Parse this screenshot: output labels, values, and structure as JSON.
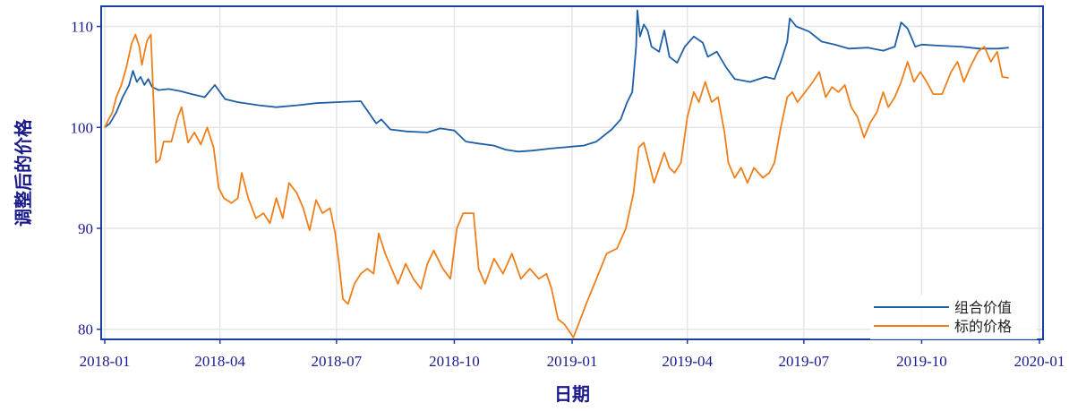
{
  "chart_data": {
    "type": "line",
    "title": "",
    "xlabel": "日期",
    "ylabel": "调整后的价格",
    "xlim": [
      "2018-01-01",
      "2020-01-01"
    ],
    "ylim": [
      79,
      112
    ],
    "x_ticks": [
      "2018-01",
      "2018-04",
      "2018-07",
      "2018-10",
      "2019-01",
      "2019-04",
      "2019-07",
      "2019-10",
      "2020-01"
    ],
    "y_ticks": [
      80,
      90,
      100,
      110
    ],
    "grid": true,
    "legend_position": "bottom-right",
    "series": [
      {
        "name": "组合价值",
        "color": "#1f5fa6",
        "points": [
          [
            "2018-01-01",
            100.0
          ],
          [
            "2018-01-05",
            100.4
          ],
          [
            "2018-01-10",
            101.5
          ],
          [
            "2018-01-15",
            103.0
          ],
          [
            "2018-01-20",
            104.2
          ],
          [
            "2018-01-23",
            105.6
          ],
          [
            "2018-01-26",
            104.5
          ],
          [
            "2018-01-29",
            105.0
          ],
          [
            "2018-02-01",
            104.2
          ],
          [
            "2018-02-04",
            104.8
          ],
          [
            "2018-02-07",
            104.0
          ],
          [
            "2018-02-12",
            103.7
          ],
          [
            "2018-02-20",
            103.8
          ],
          [
            "2018-03-01",
            103.6
          ],
          [
            "2018-03-10",
            103.3
          ],
          [
            "2018-03-20",
            103.0
          ],
          [
            "2018-03-28",
            104.2
          ],
          [
            "2018-04-05",
            102.8
          ],
          [
            "2018-04-15",
            102.5
          ],
          [
            "2018-05-01",
            102.2
          ],
          [
            "2018-05-15",
            102.0
          ],
          [
            "2018-06-01",
            102.2
          ],
          [
            "2018-06-15",
            102.4
          ],
          [
            "2018-07-01",
            102.5
          ],
          [
            "2018-07-20",
            102.6
          ],
          [
            "2018-07-26",
            101.5
          ],
          [
            "2018-08-01",
            100.4
          ],
          [
            "2018-08-05",
            100.8
          ],
          [
            "2018-08-12",
            99.8
          ],
          [
            "2018-08-25",
            99.6
          ],
          [
            "2018-09-10",
            99.5
          ],
          [
            "2018-09-20",
            99.9
          ],
          [
            "2018-10-01",
            99.7
          ],
          [
            "2018-10-10",
            98.6
          ],
          [
            "2018-10-20",
            98.4
          ],
          [
            "2018-11-01",
            98.2
          ],
          [
            "2018-11-10",
            97.8
          ],
          [
            "2018-11-20",
            97.6
          ],
          [
            "2018-12-01",
            97.7
          ],
          [
            "2018-12-15",
            97.9
          ],
          [
            "2019-01-01",
            98.1
          ],
          [
            "2019-01-10",
            98.2
          ],
          [
            "2019-01-20",
            98.6
          ],
          [
            "2019-02-01",
            99.8
          ],
          [
            "2019-02-08",
            100.8
          ],
          [
            "2019-02-13",
            102.5
          ],
          [
            "2019-02-17",
            103.5
          ],
          [
            "2019-02-20",
            108.0
          ],
          [
            "2019-02-21",
            111.6
          ],
          [
            "2019-02-23",
            109.0
          ],
          [
            "2019-02-26",
            110.2
          ],
          [
            "2019-03-01",
            109.6
          ],
          [
            "2019-03-04",
            108.0
          ],
          [
            "2019-03-10",
            107.5
          ],
          [
            "2019-03-14",
            109.6
          ],
          [
            "2019-03-18",
            107.0
          ],
          [
            "2019-03-24",
            106.4
          ],
          [
            "2019-03-30",
            108.0
          ],
          [
            "2019-04-06",
            109.0
          ],
          [
            "2019-04-13",
            108.4
          ],
          [
            "2019-04-17",
            107.0
          ],
          [
            "2019-04-24",
            107.5
          ],
          [
            "2019-05-01",
            106.0
          ],
          [
            "2019-05-08",
            104.8
          ],
          [
            "2019-05-20",
            104.5
          ],
          [
            "2019-06-01",
            105.0
          ],
          [
            "2019-06-08",
            104.8
          ],
          [
            "2019-06-13",
            106.5
          ],
          [
            "2019-06-18",
            108.5
          ],
          [
            "2019-06-20",
            110.8
          ],
          [
            "2019-06-25",
            110.0
          ],
          [
            "2019-07-05",
            109.5
          ],
          [
            "2019-07-15",
            108.5
          ],
          [
            "2019-07-25",
            108.2
          ],
          [
            "2019-08-05",
            107.8
          ],
          [
            "2019-08-20",
            107.9
          ],
          [
            "2019-09-01",
            107.6
          ],
          [
            "2019-09-10",
            108.0
          ],
          [
            "2019-09-15",
            110.4
          ],
          [
            "2019-09-20",
            109.8
          ],
          [
            "2019-09-26",
            108.0
          ],
          [
            "2019-10-01",
            108.2
          ],
          [
            "2019-10-15",
            108.1
          ],
          [
            "2019-11-01",
            108.0
          ],
          [
            "2019-11-15",
            107.8
          ],
          [
            "2019-11-30",
            107.8
          ],
          [
            "2019-12-08",
            107.9
          ]
        ]
      },
      {
        "name": "标的价格",
        "color": "#ef7f1a",
        "points": [
          [
            "2018-01-01",
            100.0
          ],
          [
            "2018-01-04",
            100.8
          ],
          [
            "2018-01-07",
            101.5
          ],
          [
            "2018-01-10",
            103.0
          ],
          [
            "2018-01-14",
            104.2
          ],
          [
            "2018-01-18",
            106.0
          ],
          [
            "2018-01-22",
            108.3
          ],
          [
            "2018-01-25",
            109.2
          ],
          [
            "2018-01-28",
            108.0
          ],
          [
            "2018-01-30",
            106.2
          ],
          [
            "2018-02-03",
            108.6
          ],
          [
            "2018-02-06",
            109.2
          ],
          [
            "2018-02-08",
            103.0
          ],
          [
            "2018-02-10",
            96.5
          ],
          [
            "2018-02-13",
            96.8
          ],
          [
            "2018-02-16",
            98.6
          ],
          [
            "2018-02-22",
            98.6
          ],
          [
            "2018-02-27",
            101.0
          ],
          [
            "2018-03-02",
            102.0
          ],
          [
            "2018-03-07",
            98.5
          ],
          [
            "2018-03-12",
            99.5
          ],
          [
            "2018-03-17",
            98.3
          ],
          [
            "2018-03-22",
            100.0
          ],
          [
            "2018-03-27",
            98.0
          ],
          [
            "2018-03-31",
            94.0
          ],
          [
            "2018-04-04",
            93.0
          ],
          [
            "2018-04-10",
            92.5
          ],
          [
            "2018-04-15",
            93.0
          ],
          [
            "2018-04-18",
            95.5
          ],
          [
            "2018-04-23",
            93.0
          ],
          [
            "2018-04-29",
            91.0
          ],
          [
            "2018-05-05",
            91.5
          ],
          [
            "2018-05-10",
            90.5
          ],
          [
            "2018-05-15",
            93.0
          ],
          [
            "2018-05-20",
            91.0
          ],
          [
            "2018-05-25",
            94.5
          ],
          [
            "2018-05-31",
            93.5
          ],
          [
            "2018-06-05",
            92.0
          ],
          [
            "2018-06-10",
            89.8
          ],
          [
            "2018-06-15",
            92.8
          ],
          [
            "2018-06-20",
            91.5
          ],
          [
            "2018-06-26",
            92.0
          ],
          [
            "2018-06-30",
            89.5
          ],
          [
            "2018-07-03",
            86.5
          ],
          [
            "2018-07-06",
            83.0
          ],
          [
            "2018-07-10",
            82.5
          ],
          [
            "2018-07-15",
            84.5
          ],
          [
            "2018-07-20",
            85.5
          ],
          [
            "2018-07-25",
            86.0
          ],
          [
            "2018-07-30",
            85.5
          ],
          [
            "2018-08-03",
            89.5
          ],
          [
            "2018-08-08",
            87.5
          ],
          [
            "2018-08-13",
            86.0
          ],
          [
            "2018-08-18",
            84.5
          ],
          [
            "2018-08-24",
            86.5
          ],
          [
            "2018-08-30",
            85.0
          ],
          [
            "2018-09-05",
            84.0
          ],
          [
            "2018-09-10",
            86.5
          ],
          [
            "2018-09-15",
            87.8
          ],
          [
            "2018-09-22",
            86.0
          ],
          [
            "2018-09-28",
            85.0
          ],
          [
            "2018-10-03",
            90.0
          ],
          [
            "2018-10-08",
            91.5
          ],
          [
            "2018-10-16",
            91.5
          ],
          [
            "2018-10-20",
            86.0
          ],
          [
            "2018-10-25",
            84.5
          ],
          [
            "2018-11-01",
            87.0
          ],
          [
            "2018-11-08",
            85.5
          ],
          [
            "2018-11-15",
            87.5
          ],
          [
            "2018-11-22",
            85.0
          ],
          [
            "2018-11-29",
            86.0
          ],
          [
            "2018-12-06",
            85.0
          ],
          [
            "2018-12-12",
            85.5
          ],
          [
            "2018-12-16",
            84.0
          ],
          [
            "2018-12-21",
            81.0
          ],
          [
            "2018-12-26",
            80.5
          ],
          [
            "2019-01-02",
            79.2
          ],
          [
            "2019-01-06",
            80.5
          ],
          [
            "2019-01-12",
            82.5
          ],
          [
            "2019-01-20",
            85.0
          ],
          [
            "2019-01-28",
            87.5
          ],
          [
            "2019-02-05",
            88.0
          ],
          [
            "2019-02-12",
            90.0
          ],
          [
            "2019-02-18",
            93.5
          ],
          [
            "2019-02-22",
            98.0
          ],
          [
            "2019-02-26",
            98.5
          ],
          [
            "2019-03-02",
            96.5
          ],
          [
            "2019-03-06",
            94.5
          ],
          [
            "2019-03-10",
            96.0
          ],
          [
            "2019-03-14",
            97.5
          ],
          [
            "2019-03-18",
            96.0
          ],
          [
            "2019-03-22",
            95.5
          ],
          [
            "2019-03-27",
            96.5
          ],
          [
            "2019-04-01",
            101.0
          ],
          [
            "2019-04-06",
            103.5
          ],
          [
            "2019-04-10",
            102.5
          ],
          [
            "2019-04-15",
            104.5
          ],
          [
            "2019-04-20",
            102.5
          ],
          [
            "2019-04-25",
            103.0
          ],
          [
            "2019-04-30",
            99.5
          ],
          [
            "2019-05-03",
            96.5
          ],
          [
            "2019-05-08",
            95.0
          ],
          [
            "2019-05-13",
            96.0
          ],
          [
            "2019-05-18",
            94.5
          ],
          [
            "2019-05-23",
            96.0
          ],
          [
            "2019-05-30",
            95.0
          ],
          [
            "2019-06-04",
            95.5
          ],
          [
            "2019-06-08",
            96.5
          ],
          [
            "2019-06-13",
            100.0
          ],
          [
            "2019-06-18",
            103.0
          ],
          [
            "2019-06-22",
            103.5
          ],
          [
            "2019-06-26",
            102.5
          ],
          [
            "2019-07-02",
            103.5
          ],
          [
            "2019-07-08",
            104.5
          ],
          [
            "2019-07-13",
            105.5
          ],
          [
            "2019-07-18",
            103.0
          ],
          [
            "2019-07-23",
            104.0
          ],
          [
            "2019-07-28",
            103.5
          ],
          [
            "2019-08-02",
            104.2
          ],
          [
            "2019-08-07",
            102.0
          ],
          [
            "2019-08-12",
            101.0
          ],
          [
            "2019-08-17",
            99.0
          ],
          [
            "2019-08-22",
            100.5
          ],
          [
            "2019-08-27",
            101.5
          ],
          [
            "2019-09-01",
            103.5
          ],
          [
            "2019-09-05",
            102.0
          ],
          [
            "2019-09-10",
            103.0
          ],
          [
            "2019-09-15",
            104.5
          ],
          [
            "2019-09-20",
            106.5
          ],
          [
            "2019-09-25",
            104.5
          ],
          [
            "2019-09-30",
            105.5
          ],
          [
            "2019-10-05",
            104.5
          ],
          [
            "2019-10-10",
            103.3
          ],
          [
            "2019-10-17",
            103.3
          ],
          [
            "2019-10-24",
            105.5
          ],
          [
            "2019-10-29",
            106.5
          ],
          [
            "2019-11-03",
            104.5
          ],
          [
            "2019-11-08",
            106.0
          ],
          [
            "2019-11-14",
            107.5
          ],
          [
            "2019-11-19",
            108.0
          ],
          [
            "2019-11-24",
            106.5
          ],
          [
            "2019-11-29",
            107.5
          ],
          [
            "2019-12-03",
            105.0
          ],
          [
            "2019-12-08",
            104.9
          ]
        ]
      }
    ]
  }
}
